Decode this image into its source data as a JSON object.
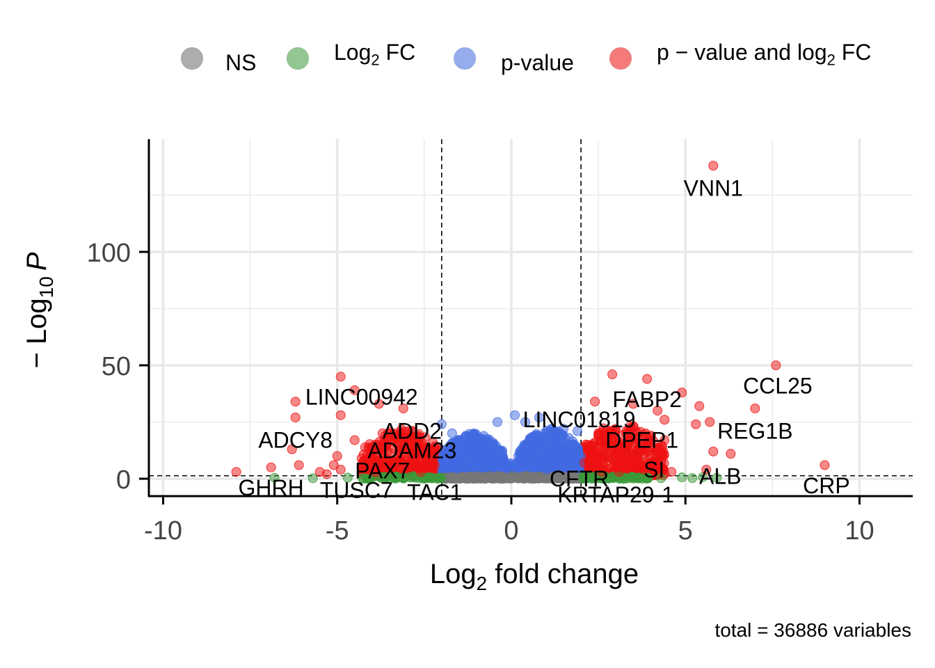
{
  "legend": {
    "items": [
      {
        "key": "ns",
        "label_main": "NS",
        "label_sub": "",
        "label_tail": "",
        "color": "#777777"
      },
      {
        "key": "fc",
        "label_main": "Log",
        "label_sub": "2",
        "label_tail": " FC",
        "color": "#3a9a3a"
      },
      {
        "key": "p",
        "label_main": "p-value",
        "label_sub": "",
        "label_tail": "",
        "color": "#4169e1"
      },
      {
        "key": "both",
        "label_main": "p − value and log",
        "label_sub": "2",
        "label_tail": " FC",
        "color": "#ee1111"
      }
    ]
  },
  "caption": "total = 36886 variables",
  "chart_data": {
    "type": "scatter",
    "xlabel": {
      "main": "Log",
      "sub": "2",
      "tail": " fold change"
    },
    "ylabel": {
      "prefix": "− Log",
      "sub": "10",
      "tail": "P"
    },
    "xlim": [
      -10.5,
      11.5
    ],
    "ylim": [
      -7,
      150
    ],
    "x_ticks": [
      -10,
      -5,
      0,
      5,
      10
    ],
    "x_tick_labels": [
      "-10",
      "-5",
      "0",
      "5",
      "10"
    ],
    "y_ticks": [
      0,
      50,
      100
    ],
    "y_tick_labels": [
      "0",
      "50",
      "100"
    ],
    "grid": true,
    "cutoffs": {
      "log2fc": [
        -2,
        2
      ],
      "neg_log10_p": 1.3
    },
    "series_colors": {
      "ns": "#777777",
      "fc": "#3a9a3a",
      "p": "#4169e1",
      "both": "#ee1111"
    },
    "points": {
      "both": [
        [
          5.8,
          138
        ],
        [
          7.6,
          50
        ],
        [
          -4.9,
          45
        ],
        [
          2.9,
          46
        ],
        [
          3.9,
          44
        ],
        [
          -4.5,
          39
        ],
        [
          4.9,
          38
        ],
        [
          -6.2,
          34
        ],
        [
          -3.8,
          33
        ],
        [
          -3.1,
          31
        ],
        [
          5.4,
          32
        ],
        [
          7,
          31
        ],
        [
          2.4,
          34
        ],
        [
          3.5,
          33
        ],
        [
          4.2,
          30
        ],
        [
          -6.2,
          27
        ],
        [
          -4.9,
          28
        ],
        [
          5.3,
          24
        ],
        [
          5.7,
          25
        ],
        [
          4.4,
          26
        ],
        [
          -4.5,
          17
        ],
        [
          -6.3,
          13
        ],
        [
          -3.7,
          20
        ],
        [
          -3.3,
          18
        ],
        [
          -2.9,
          16
        ],
        [
          5.8,
          12
        ],
        [
          6.3,
          11
        ],
        [
          4.4,
          17
        ],
        [
          3,
          22
        ],
        [
          2.5,
          19
        ],
        [
          -5,
          10
        ],
        [
          -6.9,
          5
        ],
        [
          -7.9,
          3
        ],
        [
          -6.1,
          6
        ],
        [
          -5.1,
          6
        ],
        [
          -4.3,
          9
        ],
        [
          -4.1,
          4
        ],
        [
          -3.6,
          8
        ],
        [
          -3.2,
          12
        ],
        [
          -2.8,
          9
        ],
        [
          -2.4,
          11
        ],
        [
          -2.2,
          6
        ],
        [
          9,
          6
        ],
        [
          5.6,
          4
        ],
        [
          4.1,
          7
        ],
        [
          3.6,
          10
        ],
        [
          3.2,
          13
        ],
        [
          2.8,
          8
        ],
        [
          2.3,
          10
        ],
        [
          2.1,
          7
        ],
        [
          -5.5,
          3
        ],
        [
          -5.3,
          2
        ],
        [
          -4.9,
          4
        ],
        [
          -3.9,
          3
        ],
        [
          -2.6,
          3
        ],
        [
          2.6,
          3
        ],
        [
          3.1,
          3
        ],
        [
          3.8,
          4
        ],
        [
          4.6,
          3
        ]
      ],
      "fc": [
        [
          -6.8,
          0.4
        ],
        [
          -5.7,
          0.2
        ],
        [
          -4.7,
          0.5
        ],
        [
          -3.6,
          0.6
        ],
        [
          -3.1,
          0.3
        ],
        [
          -2.5,
          0.2
        ],
        [
          2.4,
          0.6
        ],
        [
          2.9,
          0.4
        ],
        [
          3.5,
          0.5
        ],
        [
          3.9,
          0.5
        ],
        [
          4.3,
          0.2
        ],
        [
          4.9,
          0.6
        ],
        [
          5.2,
          0.3
        ],
        [
          5.5,
          0.7
        ],
        [
          5.9,
          0.4
        ]
      ],
      "p": [
        [
          -2,
          24
        ],
        [
          -1.7,
          20
        ],
        [
          -1.3,
          19
        ],
        [
          -1.6,
          15
        ],
        [
          -0.9,
          14
        ],
        [
          -0.5,
          12
        ],
        [
          -0.4,
          8
        ],
        [
          -0.2,
          6
        ],
        [
          0.2,
          10
        ],
        [
          0.5,
          14
        ],
        [
          0.7,
          19
        ],
        [
          0.9,
          17
        ],
        [
          1.2,
          19
        ],
        [
          1.5,
          22
        ],
        [
          1.9,
          21
        ],
        [
          1.7,
          14
        ],
        [
          0.4,
          25
        ],
        [
          0.8,
          27
        ],
        [
          0.1,
          28
        ],
        [
          -0.4,
          25
        ],
        [
          1.3,
          12
        ],
        [
          1.8,
          9
        ],
        [
          -1.9,
          10
        ],
        [
          -1.5,
          8
        ],
        [
          -1.1,
          6
        ],
        [
          0.6,
          5
        ],
        [
          1,
          4
        ]
      ],
      "ns": [
        [
          -1.5,
          0.3
        ],
        [
          -1,
          0.6
        ],
        [
          -0.6,
          0.2
        ],
        [
          -0.2,
          0.5
        ],
        [
          0.2,
          0.4
        ],
        [
          0.6,
          0.2
        ],
        [
          1,
          0.6
        ],
        [
          1.4,
          0.3
        ],
        [
          1.8,
          0.5
        ]
      ]
    },
    "density_regions": [
      {
        "category": "both",
        "x_range": [
          -4.3,
          -2.0
        ],
        "y_range": [
          1.5,
          22
        ],
        "count": 360
      },
      {
        "category": "both",
        "x_range": [
          2.0,
          4.4
        ],
        "y_range": [
          1.5,
          25
        ],
        "count": 420
      },
      {
        "category": "p",
        "x_range": [
          -2.0,
          -0.2
        ],
        "y_range": [
          1.5,
          20
        ],
        "count": 480
      },
      {
        "category": "p",
        "x_range": [
          0.2,
          2.0
        ],
        "y_range": [
          1.5,
          22
        ],
        "count": 520
      },
      {
        "category": "p",
        "x_range": [
          -0.5,
          0.5
        ],
        "y_range": [
          1.5,
          7
        ],
        "count": 150
      },
      {
        "category": "ns",
        "x_range": [
          -2.0,
          2.0
        ],
        "y_range": [
          0,
          1.3
        ],
        "count": 240
      },
      {
        "category": "fc",
        "x_range": [
          2.0,
          4.0
        ],
        "y_range": [
          0,
          1.3
        ],
        "count": 60
      },
      {
        "category": "fc",
        "x_range": [
          -4.3,
          -2.0
        ],
        "y_range": [
          0,
          1.3
        ],
        "count": 50
      }
    ],
    "labels": [
      {
        "text": "VNN1",
        "x": 5.8,
        "y": 128
      },
      {
        "text": "CCL25",
        "x": 7.65,
        "y": 41
      },
      {
        "text": "LINC00942",
        "x": -4.3,
        "y": 36
      },
      {
        "text": "FABP2",
        "x": 3.9,
        "y": 35
      },
      {
        "text": "ADD2",
        "x": -2.85,
        "y": 21
      },
      {
        "text": "LINC01819",
        "x": 1.95,
        "y": 26
      },
      {
        "text": "REG1B",
        "x": 7.0,
        "y": 21
      },
      {
        "text": "ADCY8",
        "x": -6.2,
        "y": 17
      },
      {
        "text": "DPEP1",
        "x": 3.75,
        "y": 17
      },
      {
        "text": "ADAM23",
        "x": -2.85,
        "y": 12.5
      },
      {
        "text": "SI",
        "x": 4.1,
        "y": 4
      },
      {
        "text": "PAX7",
        "x": -3.7,
        "y": 3.5
      },
      {
        "text": "ALB",
        "x": 6.0,
        "y": 1
      },
      {
        "text": "CFTR",
        "x": 1.95,
        "y": 0
      },
      {
        "text": "CRP",
        "x": 9.05,
        "y": -3
      },
      {
        "text": "GHRH",
        "x": -6.9,
        "y": -4
      },
      {
        "text": "TUSC7",
        "x": -4.45,
        "y": -5
      },
      {
        "text": "TAC1",
        "x": -2.2,
        "y": -6
      },
      {
        "text": "KRTAP29-1",
        "x": 3.0,
        "y": -7
      }
    ]
  }
}
